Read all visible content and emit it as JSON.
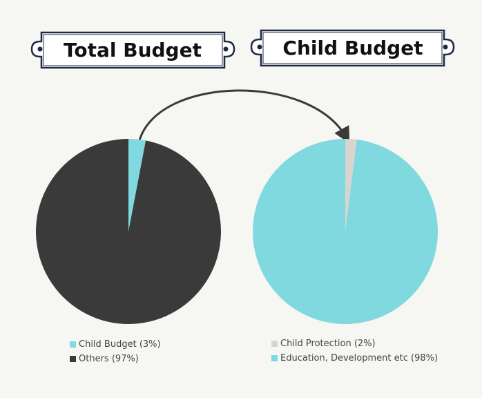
{
  "chart_data": [
    {
      "type": "pie",
      "title": "Total Budget",
      "slices": [
        {
          "label": "Child Budget (3%)",
          "value": 3,
          "color": "#7fd9df"
        },
        {
          "label": "Others (97%)",
          "value": 97,
          "color": "#3a3a3a"
        }
      ]
    },
    {
      "type": "pie",
      "title": "Child Budget",
      "slices": [
        {
          "label": "Child Protection (2%)",
          "value": 2,
          "color": "#d8d4ce"
        },
        {
          "label": "Education, Development etc (98%)",
          "value": 98,
          "color": "#7fd9df"
        }
      ]
    }
  ],
  "colors": {
    "background": "#f6f6f3",
    "banner_border": "#1e2a44",
    "arrow": "#3a3a3a"
  }
}
